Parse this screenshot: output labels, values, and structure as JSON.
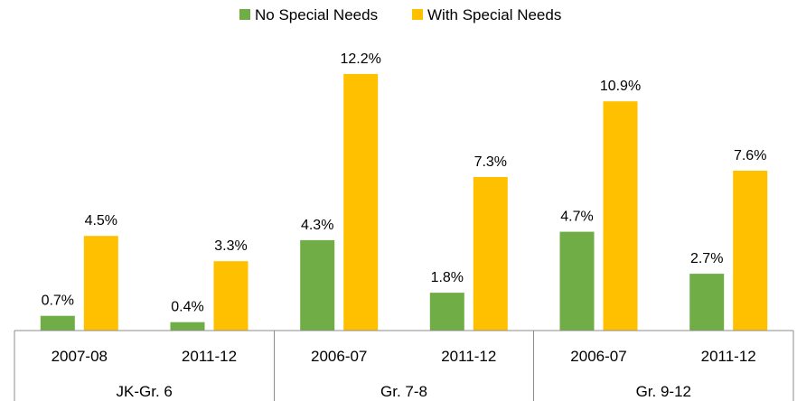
{
  "chart_data": {
    "type": "bar",
    "groups": [
      {
        "label": "JK-Gr. 6",
        "categories": [
          "2007-08",
          "2011-12"
        ]
      },
      {
        "label": "Gr. 7-8",
        "categories": [
          "2006-07",
          "2011-12"
        ]
      },
      {
        "label": "Gr. 9-12",
        "categories": [
          "2006-07",
          "2011-12"
        ]
      }
    ],
    "categories": [
      "2007-08",
      "2011-12",
      "2006-07",
      "2011-12",
      "2006-07",
      "2011-12"
    ],
    "series": [
      {
        "name": "No Special Needs",
        "color": "#70ad47",
        "values": [
          0.7,
          0.4,
          4.3,
          1.8,
          4.7,
          2.7
        ],
        "labels": [
          "0.7%",
          "0.4%",
          "4.3%",
          "1.8%",
          "4.7%",
          "2.7%"
        ]
      },
      {
        "name": "With Special Needs",
        "color": "#ffc000",
        "values": [
          4.5,
          3.3,
          12.2,
          7.3,
          10.9,
          7.6
        ],
        "labels": [
          "4.5%",
          "3.3%",
          "12.2%",
          "7.3%",
          "10.9%",
          "7.6%"
        ]
      }
    ],
    "unit": "%",
    "ylim": [
      0,
      14
    ],
    "grid": false,
    "legend_position": "top-center",
    "title": "",
    "xlabel": "",
    "ylabel": ""
  }
}
